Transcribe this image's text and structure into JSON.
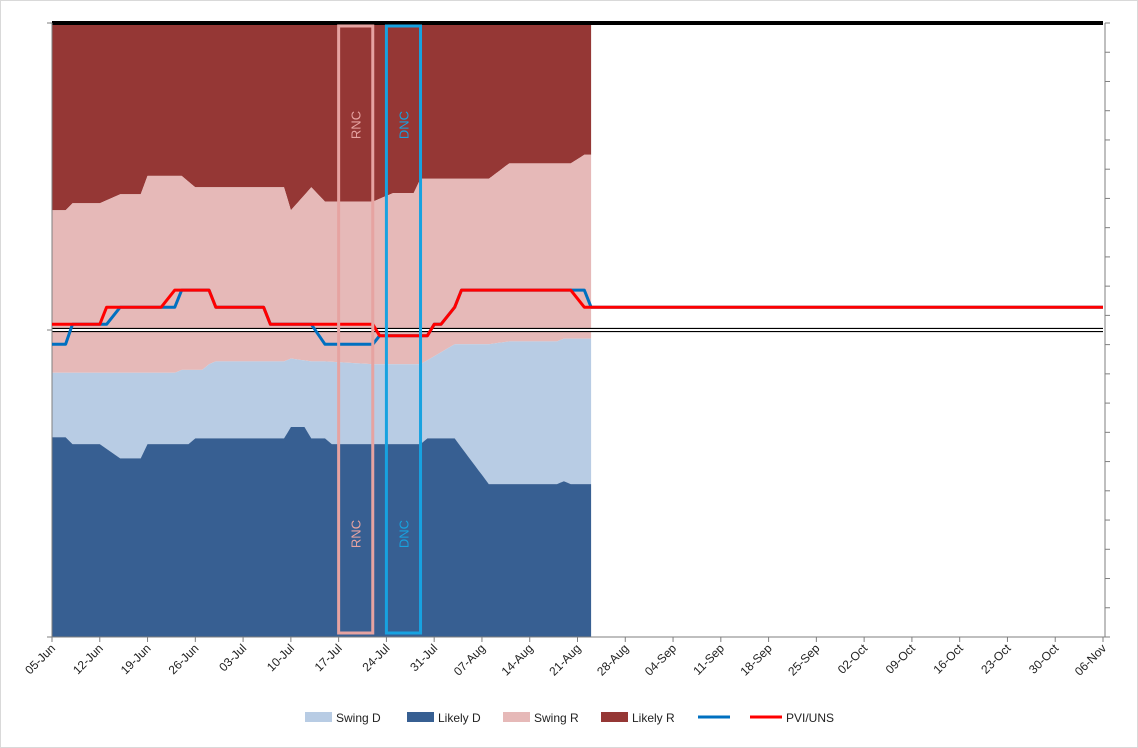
{
  "chart_data": {
    "type": "area",
    "x_labels": [
      "05-Jun",
      "12-Jun",
      "19-Jun",
      "26-Jun",
      "03-Jul",
      "10-Jul",
      "17-Jul",
      "24-Jul",
      "31-Jul",
      "07-Aug",
      "14-Aug",
      "21-Aug",
      "28-Aug",
      "04-Sep",
      "11-Sep",
      "18-Sep",
      "25-Sep",
      "02-Oct",
      "09-Oct",
      "16-Oct",
      "23-Oct",
      "30-Oct",
      "06-Nov"
    ],
    "x_day_range": [
      0,
      154
    ],
    "y_range": [
      -538,
      538
    ],
    "series": [
      {
        "name": "Likely D",
        "color": "#375f92",
        "x": [
          0,
          2,
          3,
          7,
          10,
          13,
          14,
          15,
          20,
          21,
          22,
          34,
          35,
          37,
          38,
          40,
          41,
          47,
          50,
          54,
          55,
          59,
          64,
          70,
          74,
          75,
          76,
          78,
          79
        ],
        "y": [
          -188,
          -188,
          -200,
          -200,
          -225,
          -225,
          -200,
          -200,
          -200,
          -190,
          -190,
          -190,
          -170,
          -170,
          -190,
          -190,
          -200,
          -200,
          -200,
          -200,
          -190,
          -190,
          -270,
          -270,
          -270,
          -265,
          -270,
          -270,
          -270
        ]
      },
      {
        "name": "Swing D",
        "color": "#b8cce4",
        "x": [
          0,
          2,
          3,
          10,
          13,
          14,
          15,
          18,
          19,
          21,
          22,
          23,
          24,
          25,
          31,
          34,
          35,
          38,
          40,
          47,
          50,
          53,
          54,
          59,
          64,
          67,
          70,
          74,
          75,
          76,
          78,
          79
        ],
        "y": [
          -75,
          -75,
          -75,
          -75,
          -75,
          -75,
          -75,
          -75,
          -70,
          -70,
          -70,
          -60,
          -55,
          -55,
          -55,
          -55,
          -50,
          -55,
          -55,
          -60,
          -60,
          -60,
          -60,
          -25,
          -25,
          -20,
          -20,
          -20,
          -15,
          -15,
          -15,
          -15
        ]
      },
      {
        "name": "Swing R",
        "color": "#e6b9b8",
        "x": [
          0,
          2,
          3,
          7,
          10,
          13,
          14,
          15,
          18,
          19,
          21,
          22,
          23,
          24,
          25,
          31,
          34,
          35,
          38,
          40,
          47,
          50,
          53,
          54,
          59,
          64,
          67,
          70,
          74,
          75,
          76,
          78,
          79
        ],
        "y": [
          210,
          210,
          222,
          222,
          238,
          238,
          270,
          270,
          270,
          270,
          250,
          250,
          250,
          250,
          250,
          250,
          250,
          210,
          250,
          225,
          225,
          240,
          240,
          265,
          265,
          265,
          292,
          292,
          292,
          292,
          292,
          307,
          307
        ]
      },
      {
        "name": "Likely R",
        "color": "#953735",
        "x": [
          0,
          79
        ],
        "y": [
          538,
          538
        ]
      },
      {
        "name": "",
        "color": "#0070c0",
        "type": "line",
        "x": [
          0,
          2,
          3,
          7,
          8,
          10,
          13,
          15,
          16,
          18,
          19,
          21,
          22,
          23,
          24,
          25,
          31,
          32,
          34,
          35,
          38,
          40,
          47,
          48,
          50,
          54,
          55,
          56,
          57,
          59,
          60,
          64,
          67,
          70,
          72,
          74,
          75,
          76,
          78,
          79,
          154
        ],
        "y": [
          -25,
          -25,
          10,
          10,
          10,
          40,
          40,
          40,
          40,
          40,
          70,
          70,
          70,
          70,
          40,
          40,
          40,
          10,
          10,
          10,
          10,
          -25,
          -25,
          -10,
          -10,
          -10,
          -10,
          10,
          10,
          40,
          70,
          70,
          70,
          70,
          70,
          70,
          70,
          70,
          70,
          40,
          40
        ]
      },
      {
        "name": "PVI/UNS",
        "color": "#ff0000",
        "type": "line",
        "x": [
          0,
          7,
          8,
          13,
          15,
          16,
          18,
          19,
          21,
          22,
          23,
          24,
          25,
          31,
          32,
          34,
          35,
          38,
          40,
          47,
          48,
          50,
          54,
          55,
          56,
          57,
          59,
          60,
          64,
          67,
          70,
          72,
          74,
          75,
          76,
          78,
          79,
          154
        ],
        "y": [
          10,
          10,
          40,
          40,
          40,
          40,
          70,
          70,
          70,
          70,
          70,
          40,
          40,
          40,
          10,
          10,
          10,
          10,
          10,
          10,
          -10,
          -10,
          -10,
          -10,
          10,
          10,
          40,
          70,
          70,
          70,
          70,
          70,
          70,
          70,
          70,
          40,
          40,
          40
        ]
      }
    ],
    "baseline_y": 0,
    "conventions": [
      {
        "label_top": "RNC",
        "label_bottom": "RNC",
        "x_start": 42,
        "x_end": 47,
        "color": "#e6a3a1"
      },
      {
        "label_top": "DNC",
        "label_bottom": "DNC",
        "x_start": 49,
        "x_end": 54,
        "color": "#17a2e0"
      }
    ],
    "legend": {
      "position": "bottom",
      "entries": [
        {
          "label": "Swing D",
          "color": "#b8cce4",
          "kind": "box"
        },
        {
          "label": "Likely D",
          "color": "#375f92",
          "kind": "box"
        },
        {
          "label": "Swing R",
          "color": "#e6b9b8",
          "kind": "box"
        },
        {
          "label": "Likely R",
          "color": "#953735",
          "kind": "box"
        },
        {
          "label": "",
          "color": "#0070c0",
          "kind": "line"
        },
        {
          "label": "PVI/UNS",
          "color": "#ff0000",
          "kind": "line"
        }
      ]
    },
    "title": "",
    "xlabel": "",
    "ylabel": "",
    "grid": false
  }
}
